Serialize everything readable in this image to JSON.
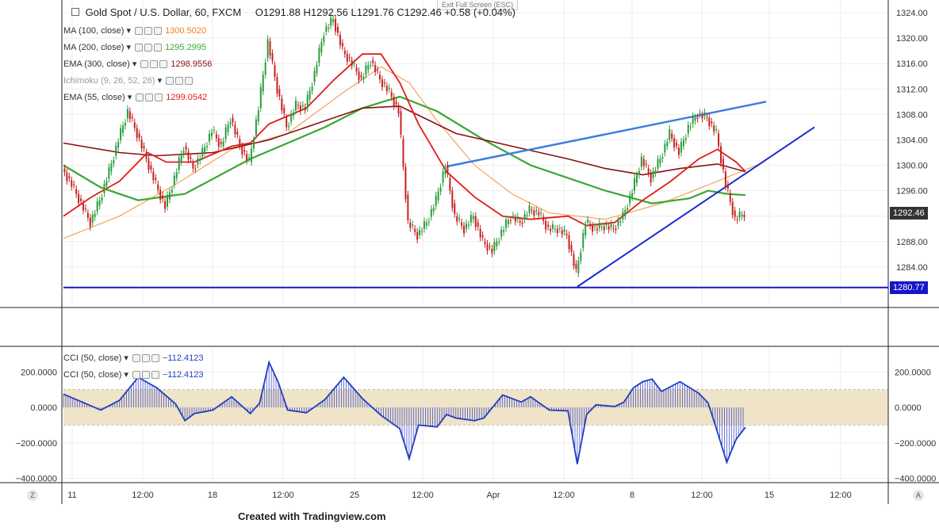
{
  "header": {
    "title": "Gold Spot / U.S. Dollar, 60, FXCM",
    "ohlc": "O1291.88  H1292.56  L1291.76  C1292.46  +0.58 (+0.04%)"
  },
  "exit_fullscreen": "Exit Full Screen (ESC)",
  "footer": "Created with Tradingview.com",
  "legend_main": [
    {
      "label": "MA (100, close)",
      "value": "1300.5020",
      "color": "#f07e1f"
    },
    {
      "label": "MA (200, close)",
      "value": "1295.2995",
      "color": "#3aa832"
    },
    {
      "label": "EMA (300, close)",
      "value": "1298.9556",
      "color": "#8b1010"
    },
    {
      "label": "Ichimoku (9, 26, 52, 26)",
      "value": "",
      "color": "#aaaaaa"
    },
    {
      "label": "EMA (55, close)",
      "value": "1299.0542",
      "color": "#e31b1b"
    }
  ],
  "legend_cci": [
    {
      "label": "CCI (50, close)",
      "value": "−112.4123",
      "color": "#1f3fbf"
    },
    {
      "label": "CCI (50, close)",
      "value": "−112.4123",
      "color": "#1f3fbf"
    }
  ],
  "price_tags": {
    "last": {
      "text": "1292.46",
      "value": 1292.46,
      "color": "#333333"
    },
    "support": {
      "text": "1280.77",
      "value": 1280.77,
      "color": "#1616c8"
    }
  },
  "corner_buttons": {
    "left": "Z",
    "right": "A"
  },
  "chart_data": {
    "type": "line",
    "title": "Gold Spot / U.S. Dollar, 60, FXCM",
    "price_ylim": [
      1278,
      1326
    ],
    "price_ticks": [
      1284,
      1288,
      1292,
      1296,
      1300,
      1304,
      1308,
      1312,
      1316,
      1320,
      1324
    ],
    "price_tick_labels": [
      "1284.00",
      "1288.00",
      "1292.00",
      "1296.00",
      "1300.00",
      "1304.00",
      "1308.00",
      "1312.00",
      "1316.00",
      "1320.00",
      "1324.00"
    ],
    "cci_ylim": [
      -420,
      340
    ],
    "cci_ticks": [
      200,
      0,
      -200,
      -400
    ],
    "cci_tick_labels": [
      "200.0000",
      "0.0000",
      "−200.0000",
      "−400.0000"
    ],
    "cci_band": [
      -100,
      100
    ],
    "x_tick_labels": [
      "11",
      "12:00",
      "18",
      "12:00",
      "25",
      "12:00",
      "Apr",
      "12:00",
      "8",
      "12:00",
      "15",
      "12:00"
    ],
    "x_label_positions": [
      0,
      1,
      2,
      3,
      4,
      5,
      6,
      7,
      8,
      9,
      10,
      11
    ],
    "price_series": {
      "name": "Gold Spot / U.S. Dollar",
      "points": [
        [
          0,
          1299.5
        ],
        [
          1,
          1297
        ],
        [
          2,
          1294
        ],
        [
          3,
          1291
        ],
        [
          4,
          1294.5
        ],
        [
          5,
          1299
        ],
        [
          6,
          1304
        ],
        [
          7,
          1308.5
        ],
        [
          8,
          1305
        ],
        [
          9,
          1301
        ],
        [
          10,
          1297
        ],
        [
          11,
          1293.5
        ],
        [
          12,
          1298
        ],
        [
          13,
          1303
        ],
        [
          14,
          1299.5
        ],
        [
          15,
          1302
        ],
        [
          16,
          1305.5
        ],
        [
          17,
          1303
        ],
        [
          18,
          1307.5
        ],
        [
          19,
          1303
        ],
        [
          20,
          1300.5
        ],
        [
          21,
          1309
        ],
        [
          22,
          1319.5
        ],
        [
          23,
          1312
        ],
        [
          24,
          1306
        ],
        [
          25,
          1309.5
        ],
        [
          26,
          1309
        ],
        [
          27,
          1314.5
        ],
        [
          28,
          1321
        ],
        [
          29,
          1323
        ],
        [
          30,
          1318
        ],
        [
          31,
          1316
        ],
        [
          32,
          1313.5
        ],
        [
          33,
          1316.5
        ],
        [
          34,
          1313.5
        ],
        [
          35,
          1311.5
        ],
        [
          36,
          1308.5
        ],
        [
          37,
          1291
        ],
        [
          38,
          1289
        ],
        [
          39,
          1291
        ],
        [
          40,
          1294.5
        ],
        [
          41,
          1300
        ],
        [
          42,
          1292
        ],
        [
          43,
          1290
        ],
        [
          44,
          1292
        ],
        [
          45,
          1288
        ],
        [
          46,
          1286.5
        ],
        [
          47,
          1289.5
        ],
        [
          48,
          1292
        ],
        [
          49,
          1291
        ],
        [
          50,
          1293
        ],
        [
          51,
          1292.5
        ],
        [
          52,
          1290
        ],
        [
          53,
          1290
        ],
        [
          54,
          1289
        ],
        [
          55,
          1283
        ],
        [
          56,
          1291
        ],
        [
          57,
          1290
        ],
        [
          58,
          1290.5
        ],
        [
          59,
          1290
        ],
        [
          60,
          1292
        ],
        [
          61,
          1296
        ],
        [
          62,
          1301
        ],
        [
          63,
          1298
        ],
        [
          64,
          1301
        ],
        [
          65,
          1305
        ],
        [
          66,
          1302
        ],
        [
          67,
          1306
        ],
        [
          68,
          1308
        ],
        [
          69,
          1307.5
        ],
        [
          70,
          1305
        ],
        [
          71,
          1297
        ],
        [
          72,
          1291.5
        ],
        [
          73,
          1292.5
        ]
      ]
    },
    "support_line": {
      "name": "1280.77",
      "y": 1280.77
    },
    "ma_series": [
      {
        "name": "MA (100, close)",
        "points": [
          [
            0,
            1288.5
          ],
          [
            6,
            1292
          ],
          [
            12,
            1297
          ],
          [
            18,
            1302.5
          ],
          [
            24,
            1305
          ],
          [
            30,
            1311.5
          ],
          [
            34,
            1315.5
          ],
          [
            37,
            1313
          ],
          [
            40,
            1307
          ],
          [
            44,
            1300
          ],
          [
            48,
            1295.5
          ],
          [
            52,
            1292.5
          ],
          [
            58,
            1291.5
          ],
          [
            64,
            1294
          ],
          [
            70,
            1297.5
          ],
          [
            75,
            1300.5
          ]
        ]
      },
      {
        "name": "MA (200, close)",
        "points": [
          [
            0,
            1300
          ],
          [
            4,
            1296.5
          ],
          [
            8,
            1294.5
          ],
          [
            13,
            1295.5
          ],
          [
            20,
            1301
          ],
          [
            28,
            1306
          ],
          [
            32,
            1309
          ],
          [
            36,
            1310.8
          ],
          [
            40,
            1308.5
          ],
          [
            45,
            1304
          ],
          [
            50,
            1300
          ],
          [
            54,
            1298
          ],
          [
            58,
            1296
          ],
          [
            63,
            1294
          ],
          [
            67,
            1294.8
          ],
          [
            69,
            1296
          ],
          [
            71,
            1295.5
          ],
          [
            73,
            1295.3
          ]
        ]
      },
      {
        "name": "EMA (300, close)",
        "points": [
          [
            0,
            1303.5
          ],
          [
            6,
            1302
          ],
          [
            10,
            1301.5
          ],
          [
            16,
            1302
          ],
          [
            22,
            1304
          ],
          [
            28,
            1307
          ],
          [
            32,
            1309
          ],
          [
            36,
            1309.3
          ],
          [
            42,
            1305
          ],
          [
            48,
            1303
          ],
          [
            54,
            1301
          ],
          [
            58,
            1299.5
          ],
          [
            62,
            1298.5
          ],
          [
            66,
            1299.5
          ],
          [
            70,
            1300.2
          ],
          [
            73,
            1299
          ]
        ]
      },
      {
        "name": "EMA (55, close)",
        "points": [
          [
            0,
            1292
          ],
          [
            3,
            1295
          ],
          [
            6,
            1297.5
          ],
          [
            9,
            1302
          ],
          [
            11,
            1300.5
          ],
          [
            14,
            1300.5
          ],
          [
            18,
            1303
          ],
          [
            20,
            1303.5
          ],
          [
            22,
            1306.5
          ],
          [
            26,
            1309
          ],
          [
            29,
            1313.5
          ],
          [
            32,
            1317.5
          ],
          [
            34,
            1317.5
          ],
          [
            36,
            1313
          ],
          [
            38,
            1306.5
          ],
          [
            41,
            1299
          ],
          [
            44,
            1295
          ],
          [
            47,
            1292
          ],
          [
            50,
            1291.5
          ],
          [
            54,
            1292
          ],
          [
            56,
            1290.5
          ],
          [
            59,
            1291
          ],
          [
            62,
            1294.5
          ],
          [
            65,
            1297.5
          ],
          [
            68,
            1301
          ],
          [
            70,
            1302.5
          ],
          [
            72,
            1300.5
          ],
          [
            73,
            1299
          ]
        ]
      }
    ],
    "trend_lines": [
      {
        "name": "upper",
        "from": [
          41,
          1299.8
        ],
        "to": [
          79,
          1310
        ]
      },
      {
        "name": "lower",
        "from": [
          55,
          1280.9
        ],
        "to": [
          79,
          1306
        ]
      }
    ],
    "cci_series": {
      "name": "CCI (50, close)",
      "points": [
        [
          0,
          75
        ],
        [
          2,
          30
        ],
        [
          4,
          -15
        ],
        [
          6,
          40
        ],
        [
          8,
          170
        ],
        [
          10,
          110
        ],
        [
          12,
          20
        ],
        [
          13,
          -75
        ],
        [
          14,
          -35
        ],
        [
          16,
          -15
        ],
        [
          18,
          60
        ],
        [
          20,
          -35
        ],
        [
          21,
          25
        ],
        [
          22,
          255
        ],
        [
          23,
          140
        ],
        [
          24,
          -15
        ],
        [
          26,
          -30
        ],
        [
          28,
          45
        ],
        [
          30,
          170
        ],
        [
          32,
          50
        ],
        [
          34,
          -45
        ],
        [
          36,
          -120
        ],
        [
          37,
          -290
        ],
        [
          38,
          -100
        ],
        [
          40,
          -110
        ],
        [
          41,
          -40
        ],
        [
          42,
          -60
        ],
        [
          44,
          -75
        ],
        [
          45,
          -60
        ],
        [
          47,
          70
        ],
        [
          49,
          30
        ],
        [
          50,
          60
        ],
        [
          52,
          -15
        ],
        [
          54,
          -20
        ],
        [
          55,
          -320
        ],
        [
          56,
          -40
        ],
        [
          57,
          15
        ],
        [
          59,
          5
        ],
        [
          60,
          30
        ],
        [
          61,
          110
        ],
        [
          62,
          145
        ],
        [
          63,
          160
        ],
        [
          64,
          90
        ],
        [
          66,
          145
        ],
        [
          68,
          80
        ],
        [
          69,
          25
        ],
        [
          70,
          -140
        ],
        [
          71,
          -310
        ],
        [
          72,
          -180
        ],
        [
          73,
          -112
        ]
      ]
    }
  }
}
